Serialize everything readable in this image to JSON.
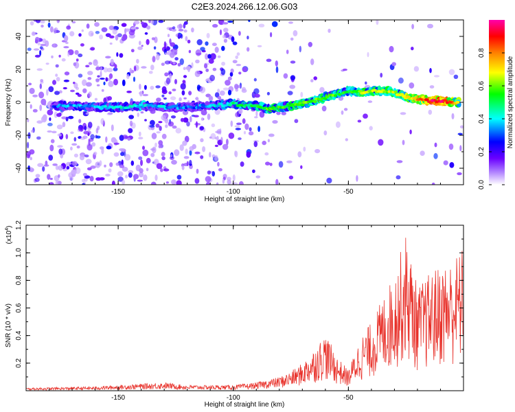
{
  "figure": {
    "title": "C2E3.2024.266.12.06.G03"
  },
  "chart_data": [
    {
      "type": "heatmap",
      "xlabel": "Height of straight line (km)",
      "ylabel": "Frequency (Hz)",
      "xlim": [
        -190,
        0
      ],
      "ylim": [
        -50,
        50
      ],
      "x_ticks": [
        "-150",
        "-100",
        "-50"
      ],
      "y_ticks": [
        "-40",
        "-20",
        "0",
        "20",
        "40"
      ],
      "colorbar": {
        "label": "Normalized spectral amplitude",
        "range": [
          0,
          1
        ],
        "ticks": [
          "0.0",
          "0.2",
          "0.4",
          "0.6",
          "0.8"
        ],
        "colors": [
          "#ffffff",
          "#ad7dff",
          "#6a00ff",
          "#0000ff",
          "#00ffff",
          "#00ff00",
          "#ffff00",
          "#ff8000",
          "#ff0000",
          "#ff00aa"
        ]
      },
      "ridge": {
        "x": [
          -178,
          -170,
          -160,
          -150,
          -140,
          -130,
          -120,
          -110,
          -100,
          -95,
          -90,
          -85,
          -80,
          -75,
          -70,
          -65,
          -60,
          -55,
          -50,
          -45,
          -40,
          -35,
          -30,
          -25,
          -20,
          -15,
          -10,
          -5,
          -2
        ],
        "frequency": [
          -2,
          -2,
          -3,
          -3,
          -2,
          -3,
          -3,
          -2,
          -1,
          -2,
          -2,
          -4,
          -3,
          -2,
          -1,
          1,
          3,
          5,
          7,
          6,
          7,
          7,
          6,
          3,
          2,
          1,
          1,
          0,
          0
        ],
        "amplitude": [
          0.25,
          0.3,
          0.3,
          0.35,
          0.35,
          0.3,
          0.25,
          0.3,
          0.4,
          0.45,
          0.45,
          0.5,
          0.5,
          0.5,
          0.55,
          0.5,
          0.55,
          0.5,
          0.45,
          0.55,
          0.6,
          0.55,
          0.6,
          0.6,
          0.7,
          0.85,
          0.9,
          0.75,
          0.6
        ]
      }
    },
    {
      "type": "line",
      "xlabel": "Height of straight line (km)",
      "ylabel": "SNR (10 * v/v)",
      "y_scale_label": "(x10",
      "y_scale_exponent": "4",
      "xlim": [
        -190,
        0
      ],
      "ylim": [
        0,
        1.2
      ],
      "x_ticks": [
        "-150",
        "-100",
        "-50"
      ],
      "y_ticks": [
        "0.2",
        "0.4",
        "0.6",
        "0.8",
        "1.0",
        "1.2"
      ],
      "series": [
        {
          "color": "#e8312a",
          "envelope_x": [
            -190,
            -160,
            -140,
            -130,
            -120,
            -100,
            -90,
            -80,
            -75,
            -70,
            -65,
            -60,
            -55,
            -50,
            -45,
            -40,
            -35,
            -30,
            -25,
            -20,
            -15,
            -10,
            -5,
            0
          ],
          "envelope_y": [
            0.02,
            0.03,
            0.05,
            0.06,
            0.04,
            0.04,
            0.06,
            0.1,
            0.14,
            0.2,
            0.3,
            0.42,
            0.25,
            0.15,
            0.38,
            0.5,
            0.68,
            0.85,
            1.15,
            0.75,
            0.85,
            0.92,
            0.95,
            1.05
          ]
        }
      ]
    }
  ]
}
